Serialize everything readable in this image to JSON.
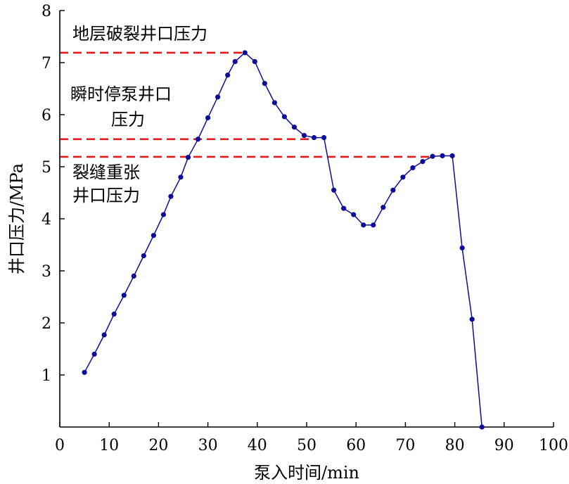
{
  "chart_data": {
    "type": "line",
    "title": "",
    "xlabel": "泵入时间/min",
    "ylabel": "井口压力/MPa",
    "xlim": [
      0,
      100
    ],
    "ylim": [
      0,
      8
    ],
    "xticks": [
      0,
      10,
      20,
      30,
      40,
      50,
      60,
      70,
      80,
      90,
      100
    ],
    "yticks": [
      1,
      2,
      3,
      4,
      5,
      6,
      7,
      8
    ],
    "grid": false,
    "series": [
      {
        "color": "#0d0d9a",
        "marker": "circle",
        "points": [
          [
            5,
            1.05
          ],
          [
            7,
            1.4
          ],
          [
            9,
            1.77
          ],
          [
            11,
            2.17
          ],
          [
            13,
            2.53
          ],
          [
            15,
            2.9
          ],
          [
            17,
            3.29
          ],
          [
            19,
            3.68
          ],
          [
            21,
            4.08
          ],
          [
            22.5,
            4.43
          ],
          [
            24.5,
            4.8
          ],
          [
            26,
            5.18
          ],
          [
            28,
            5.53
          ],
          [
            30,
            5.94
          ],
          [
            32,
            6.34
          ],
          [
            34,
            6.76
          ],
          [
            35.5,
            7.02
          ],
          [
            37.5,
            7.19
          ],
          [
            39.5,
            7.02
          ],
          [
            41.5,
            6.6
          ],
          [
            43.5,
            6.23
          ],
          [
            45.5,
            5.96
          ],
          [
            47.5,
            5.76
          ],
          [
            49.5,
            5.6
          ],
          [
            51.5,
            5.56
          ],
          [
            53.5,
            5.56
          ],
          [
            55.5,
            4.55
          ],
          [
            57.5,
            4.2
          ],
          [
            59.5,
            4.08
          ],
          [
            61.5,
            3.88
          ],
          [
            63.5,
            3.88
          ],
          [
            65.5,
            4.22
          ],
          [
            67.5,
            4.55
          ],
          [
            69.5,
            4.8
          ],
          [
            71.5,
            4.98
          ],
          [
            73.5,
            5.1
          ],
          [
            75.5,
            5.2
          ],
          [
            77.5,
            5.21
          ],
          [
            79.5,
            5.21
          ],
          [
            81.5,
            3.44
          ],
          [
            83.5,
            2.07
          ],
          [
            85.5,
            0.0
          ]
        ]
      }
    ],
    "reference_lines": [
      {
        "y": 7.19,
        "x_end": 37.5,
        "color": "#e11b1b",
        "style": "dashed",
        "label": "地层破裂井口压力"
      },
      {
        "y": 5.53,
        "x_end": 51.5,
        "color": "#e11b1b",
        "style": "dashed",
        "label_lines": [
          "瞬时停泵井口",
          "压力"
        ]
      },
      {
        "y": 5.19,
        "x_end": 75.5,
        "color": "#e11b1b",
        "style": "dashed",
        "label_lines": [
          "裂缝重张",
          "井口压力"
        ]
      }
    ]
  }
}
